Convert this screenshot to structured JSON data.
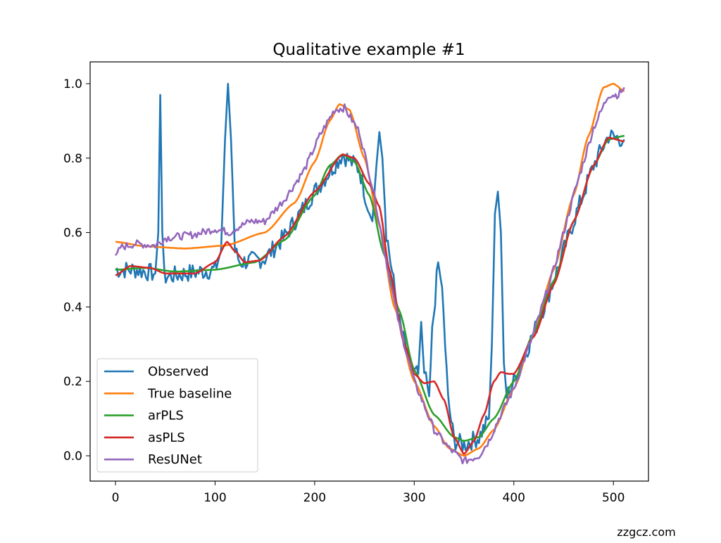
{
  "chart_data": {
    "type": "line",
    "title": "Qualitative example #1",
    "xlabel": "",
    "ylabel": "",
    "xlim": [
      -28,
      533
    ],
    "ylim": [
      -0.07,
      1.05
    ],
    "x_ticks": [
      "0",
      "100",
      "200",
      "300",
      "400",
      "500"
    ],
    "y_ticks": [
      "0.0",
      "0.2",
      "0.4",
      "0.6",
      "0.8",
      "1.0"
    ],
    "grid": false,
    "legend_position": "lower-left",
    "series": [
      {
        "name": "Observed",
        "color": "#1f77b4",
        "noisy": true,
        "points": [
          [
            0,
            0.5
          ],
          [
            20,
            0.5
          ],
          [
            40,
            0.49
          ],
          [
            43,
            0.6
          ],
          [
            45,
            0.97
          ],
          [
            47,
            0.6
          ],
          [
            49,
            0.48
          ],
          [
            70,
            0.49
          ],
          [
            100,
            0.5
          ],
          [
            106,
            0.55
          ],
          [
            110,
            0.85
          ],
          [
            113,
            1.0
          ],
          [
            116,
            0.85
          ],
          [
            120,
            0.55
          ],
          [
            125,
            0.52
          ],
          [
            150,
            0.53
          ],
          [
            170,
            0.59
          ],
          [
            200,
            0.71
          ],
          [
            228,
            0.81
          ],
          [
            245,
            0.77
          ],
          [
            255,
            0.65
          ],
          [
            258,
            0.63
          ],
          [
            262,
            0.78
          ],
          [
            265,
            0.87
          ],
          [
            268,
            0.8
          ],
          [
            272,
            0.6
          ],
          [
            285,
            0.36
          ],
          [
            298,
            0.22
          ],
          [
            304,
            0.22
          ],
          [
            307,
            0.36
          ],
          [
            310,
            0.22
          ],
          [
            315,
            0.16
          ],
          [
            318,
            0.33
          ],
          [
            324,
            0.52
          ],
          [
            328,
            0.45
          ],
          [
            334,
            0.15
          ],
          [
            340,
            0.04
          ],
          [
            350,
            0.03
          ],
          [
            365,
            0.05
          ],
          [
            375,
            0.1
          ],
          [
            378,
            0.3
          ],
          [
            381,
            0.65
          ],
          [
            384,
            0.71
          ],
          [
            387,
            0.6
          ],
          [
            390,
            0.25
          ],
          [
            393,
            0.16
          ],
          [
            400,
            0.2
          ],
          [
            420,
            0.33
          ],
          [
            440,
            0.47
          ],
          [
            460,
            0.63
          ],
          [
            480,
            0.78
          ],
          [
            495,
            0.86
          ],
          [
            511,
            0.85
          ]
        ]
      },
      {
        "name": "True baseline",
        "color": "#ff7f0e",
        "noisy": false,
        "points": [
          [
            0,
            0.575
          ],
          [
            30,
            0.563
          ],
          [
            70,
            0.557
          ],
          [
            110,
            0.565
          ],
          [
            150,
            0.6
          ],
          [
            180,
            0.68
          ],
          [
            200,
            0.79
          ],
          [
            215,
            0.9
          ],
          [
            225,
            0.945
          ],
          [
            235,
            0.93
          ],
          [
            250,
            0.8
          ],
          [
            265,
            0.62
          ],
          [
            280,
            0.4
          ],
          [
            300,
            0.2
          ],
          [
            320,
            0.08
          ],
          [
            335,
            0.02
          ],
          [
            350,
            0.0
          ],
          [
            365,
            0.02
          ],
          [
            380,
            0.07
          ],
          [
            400,
            0.18
          ],
          [
            420,
            0.33
          ],
          [
            440,
            0.5
          ],
          [
            460,
            0.7
          ],
          [
            475,
            0.86
          ],
          [
            490,
            0.99
          ],
          [
            500,
            1.0
          ],
          [
            511,
            0.98
          ]
        ]
      },
      {
        "name": "arPLS",
        "color": "#2ca02c",
        "noisy": false,
        "points": [
          [
            0,
            0.5
          ],
          [
            30,
            0.505
          ],
          [
            60,
            0.495
          ],
          [
            100,
            0.5
          ],
          [
            140,
            0.52
          ],
          [
            170,
            0.58
          ],
          [
            200,
            0.7
          ],
          [
            215,
            0.78
          ],
          [
            228,
            0.81
          ],
          [
            240,
            0.79
          ],
          [
            255,
            0.7
          ],
          [
            270,
            0.54
          ],
          [
            285,
            0.39
          ],
          [
            300,
            0.23
          ],
          [
            320,
            0.11
          ],
          [
            340,
            0.05
          ],
          [
            350,
            0.04
          ],
          [
            365,
            0.05
          ],
          [
            380,
            0.1
          ],
          [
            400,
            0.2
          ],
          [
            420,
            0.33
          ],
          [
            440,
            0.47
          ],
          [
            460,
            0.63
          ],
          [
            480,
            0.78
          ],
          [
            495,
            0.85
          ],
          [
            511,
            0.86
          ]
        ]
      },
      {
        "name": "asPLS",
        "color": "#d62728",
        "noisy": false,
        "points": [
          [
            0,
            0.485
          ],
          [
            15,
            0.51
          ],
          [
            35,
            0.505
          ],
          [
            50,
            0.49
          ],
          [
            80,
            0.49
          ],
          [
            100,
            0.52
          ],
          [
            112,
            0.575
          ],
          [
            120,
            0.55
          ],
          [
            130,
            0.52
          ],
          [
            145,
            0.525
          ],
          [
            170,
            0.59
          ],
          [
            200,
            0.71
          ],
          [
            228,
            0.81
          ],
          [
            240,
            0.8
          ],
          [
            255,
            0.73
          ],
          [
            265,
            0.67
          ],
          [
            275,
            0.5
          ],
          [
            290,
            0.3
          ],
          [
            300,
            0.22
          ],
          [
            310,
            0.195
          ],
          [
            320,
            0.2
          ],
          [
            330,
            0.15
          ],
          [
            340,
            0.05
          ],
          [
            350,
            0.005
          ],
          [
            360,
            0.04
          ],
          [
            370,
            0.11
          ],
          [
            380,
            0.2
          ],
          [
            387,
            0.225
          ],
          [
            395,
            0.22
          ],
          [
            400,
            0.22
          ],
          [
            420,
            0.32
          ],
          [
            440,
            0.46
          ],
          [
            460,
            0.63
          ],
          [
            480,
            0.78
          ],
          [
            495,
            0.855
          ],
          [
            511,
            0.845
          ]
        ]
      },
      {
        "name": "ResUNet",
        "color": "#9467bd",
        "noisy": true,
        "points": [
          [
            0,
            0.53
          ],
          [
            5,
            0.56
          ],
          [
            20,
            0.57
          ],
          [
            40,
            0.565
          ],
          [
            50,
            0.585
          ],
          [
            80,
            0.595
          ],
          [
            100,
            0.61
          ],
          [
            115,
            0.6
          ],
          [
            120,
            0.61
          ],
          [
            135,
            0.63
          ],
          [
            150,
            0.63
          ],
          [
            170,
            0.69
          ],
          [
            190,
            0.77
          ],
          [
            205,
            0.86
          ],
          [
            220,
            0.93
          ],
          [
            230,
            0.935
          ],
          [
            245,
            0.87
          ],
          [
            260,
            0.7
          ],
          [
            270,
            0.55
          ],
          [
            285,
            0.35
          ],
          [
            300,
            0.2
          ],
          [
            320,
            0.07
          ],
          [
            335,
            0.02
          ],
          [
            350,
            -0.015
          ],
          [
            365,
            0.0
          ],
          [
            375,
            0.04
          ],
          [
            385,
            0.1
          ],
          [
            400,
            0.18
          ],
          [
            420,
            0.33
          ],
          [
            440,
            0.5
          ],
          [
            460,
            0.7
          ],
          [
            480,
            0.88
          ],
          [
            495,
            0.97
          ],
          [
            505,
            0.97
          ],
          [
            511,
            0.99
          ]
        ]
      }
    ]
  },
  "watermark": "zzgcz.com"
}
